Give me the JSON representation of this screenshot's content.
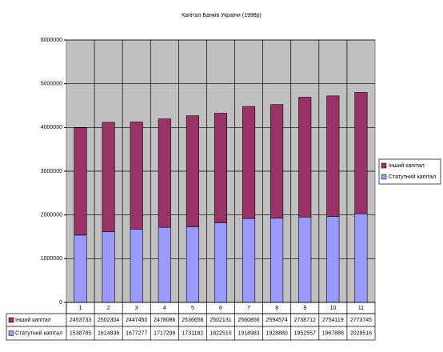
{
  "chart_data": {
    "type": "bar",
    "stacked": true,
    "title": "Капітал Банків України (1998р)",
    "categories": [
      "1",
      "2",
      "3",
      "4",
      "5",
      "6",
      "7",
      "8",
      "9",
      "10",
      "11"
    ],
    "series": [
      {
        "name": "Інший капітал",
        "color": "#993366",
        "values": [
          2453733,
          2502304,
          2447450,
          2478086,
          2536656,
          2502131,
          2560856,
          2594574,
          2738712,
          2754119,
          2773745
        ]
      },
      {
        "name": "Статутний капітал",
        "color": "#9999ff",
        "values": [
          1538785,
          1614836,
          1677277,
          1717298,
          1731182,
          1822510,
          1918983,
          1928880,
          1952557,
          1967886,
          2028516
        ]
      }
    ],
    "ylim": [
      0,
      6000000
    ],
    "yticks": [
      0,
      1000000,
      2000000,
      3000000,
      4000000,
      5000000,
      6000000
    ],
    "grid": true,
    "legend": "right",
    "plot_background": "#c0c0c0"
  }
}
